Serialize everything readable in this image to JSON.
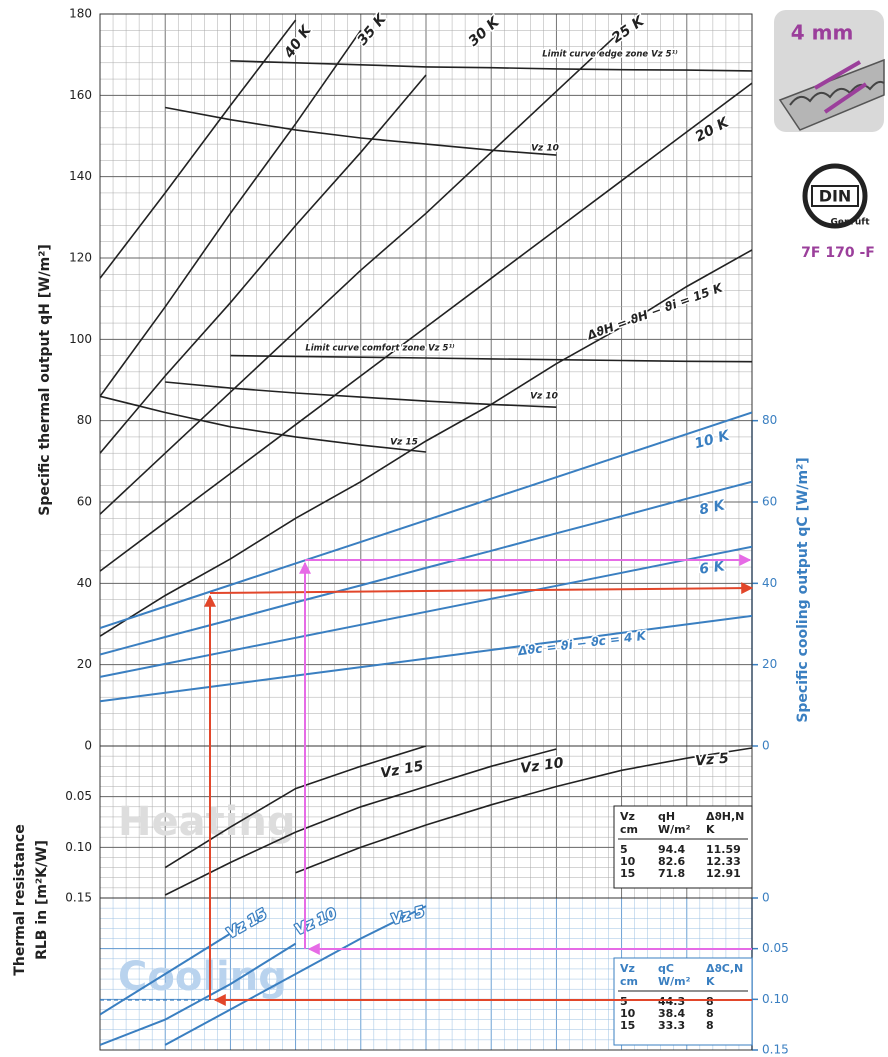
{
  "chart_data": [
    {
      "type": "line",
      "categories": [
        null,
        null,
        null,
        null,
        null,
        null,
        null,
        null,
        null,
        null,
        null
      ],
      "ylim": [
        0,
        180
      ],
      "yticks": [
        0,
        20,
        40,
        60,
        80,
        100,
        120,
        140,
        160,
        180
      ],
      "ylabel": "Specific thermal output qH [W/m²]",
      "y2lim": [
        0,
        180
      ],
      "y2ticks": [
        0,
        20,
        40,
        60,
        80
      ],
      "y2label": "Specific cooling output qC [W/m²]",
      "grid": true,
      "series": [
        {
          "name": "40 K",
          "color": "#222222",
          "values": [
            115,
            136,
            157.5,
            178.5,
            null,
            null,
            null,
            null,
            null,
            null,
            null
          ]
        },
        {
          "name": "35 K",
          "color": "#222222",
          "values": [
            86,
            108,
            131,
            153,
            176,
            null,
            null,
            null,
            null,
            null,
            null
          ]
        },
        {
          "name": "30 K",
          "color": "#222222",
          "values": [
            72,
            91,
            109,
            128,
            146,
            165,
            null,
            null,
            null,
            null,
            null
          ]
        },
        {
          "name": "25 K",
          "color": "#222222",
          "values": [
            57,
            72,
            87,
            102,
            117,
            131,
            146,
            161,
            176,
            null,
            null
          ]
        },
        {
          "name": "20 K",
          "color": "#222222",
          "values": [
            43,
            55,
            67,
            79,
            91,
            103,
            115,
            127,
            139,
            151,
            163
          ]
        },
        {
          "name": "ΔϑH = ϑH − ϑi = 15 K",
          "color": "#222222",
          "values": [
            27,
            37,
            46,
            56,
            65,
            75,
            84,
            94,
            103,
            113,
            122
          ]
        },
        {
          "name": "Limit curve edge zone Vz 5¹⁾",
          "color": "#222222",
          "values": [
            null,
            null,
            168.5,
            168,
            167.5,
            167,
            166.8,
            166.5,
            166.3,
            166.2,
            166
          ]
        },
        {
          "name": "Vz 10",
          "color": "#222222",
          "values": [
            null,
            157,
            154,
            151.5,
            149.5,
            148,
            146.5,
            145.3,
            null,
            null,
            null
          ]
        },
        {
          "name": "Limit curve comfort zone Vz 5¹⁾",
          "color": "#222222",
          "values": [
            null,
            null,
            96,
            95.8,
            95.6,
            95.4,
            95.2,
            95,
            94.8,
            94.6,
            94.5
          ]
        },
        {
          "name": "Vz 10",
          "color": "#222222",
          "values": [
            null,
            89.5,
            88,
            86.8,
            85.8,
            84.8,
            84,
            83.3,
            null,
            null,
            null
          ]
        },
        {
          "name": "Vz 15",
          "color": "#222222",
          "values": [
            86,
            82,
            78.5,
            76,
            74,
            72.3,
            null,
            null,
            null,
            null,
            null
          ]
        },
        {
          "name": "10 K",
          "color": "#3a7fc1",
          "axis": "y2",
          "values": [
            29,
            34.3,
            39.6,
            44.9,
            50.2,
            55.5,
            60.8,
            66.1,
            71.4,
            76.7,
            82
          ]
        },
        {
          "name": "8 K",
          "color": "#3a7fc1",
          "axis": "y2",
          "values": [
            22.5,
            26.8,
            31,
            35.3,
            39.5,
            43.8,
            48,
            52.3,
            56.5,
            60.8,
            65
          ]
        },
        {
          "name": "6 K",
          "color": "#3a7fc1",
          "axis": "y2",
          "values": [
            17,
            20.2,
            23.4,
            26.6,
            29.8,
            33,
            36.2,
            39.4,
            42.6,
            45.8,
            49
          ]
        },
        {
          "name": "Δϑc = ϑi − ϑc = 4 K",
          "color": "#3a7fc1",
          "axis": "y2",
          "values": [
            11,
            13.1,
            15.2,
            17.3,
            19.4,
            21.5,
            23.6,
            25.7,
            27.8,
            29.9,
            32
          ]
        }
      ]
    },
    {
      "type": "line",
      "title": "Heating",
      "categories": [
        null,
        null,
        null,
        null,
        null,
        null,
        null,
        null,
        null,
        null,
        null
      ],
      "ylim": [
        0,
        0.15
      ],
      "yreversed": true,
      "yticks": [
        0.05,
        {
          "value": 0.1,
          "label": "0.10"
        },
        0.15
      ],
      "ylabel": [
        "Thermal resistance",
        "RLB in [m²K/W]"
      ],
      "grid": true,
      "series": [
        {
          "name": "Vz 15",
          "color": "#222222",
          "values": [
            null,
            0.12,
            0.08,
            0.042,
            0.02,
            0,
            null,
            null,
            null,
            null,
            null
          ]
        },
        {
          "name": "Vz 10",
          "color": "#222222",
          "values": [
            null,
            0.147,
            0.115,
            0.085,
            0.06,
            0.04,
            0.02,
            0.003,
            null,
            null,
            null
          ]
        },
        {
          "name": "Vz 5",
          "color": "#222222",
          "values": [
            null,
            null,
            null,
            0.125,
            0.1,
            0.078,
            0.058,
            0.04,
            0.024,
            0.012,
            0.002
          ]
        }
      ],
      "table": {
        "header": [
          [
            "Vz",
            "qH",
            "ΔϑH,N"
          ],
          [
            "cm",
            "W/m²",
            "K"
          ]
        ],
        "rows": [
          [
            5,
            94.4,
            11.59
          ],
          [
            10,
            82.6,
            12.33
          ],
          [
            15,
            71.8,
            12.91
          ]
        ]
      }
    },
    {
      "type": "line",
      "title": "Cooling",
      "categories": [
        null,
        null,
        null,
        null,
        null,
        null,
        null,
        null,
        null,
        null,
        null
      ],
      "y2lim": [
        0,
        0.15
      ],
      "yreversed": true,
      "y2ticks": [
        0,
        0.05,
        {
          "value": 0.1,
          "label": "0.10"
        },
        0.15
      ],
      "grid": true,
      "series": [
        {
          "name": "Vz 15",
          "color": "#3a7fc1",
          "axis": "y2",
          "values": [
            0.115,
            0.075,
            0.035,
            null,
            null,
            null,
            null,
            null,
            null,
            null,
            null
          ]
        },
        {
          "name": "Vz 10",
          "color": "#3a7fc1",
          "axis": "y2",
          "values": [
            0.145,
            0.12,
            0.085,
            0.045,
            null,
            null,
            null,
            null,
            null,
            null,
            null
          ]
        },
        {
          "name": "Vz 5",
          "color": "#3a7fc1",
          "axis": "y2",
          "values": [
            null,
            0.145,
            0.11,
            0.075,
            0.04,
            0.008,
            null,
            null,
            null,
            null,
            null
          ]
        }
      ],
      "table": {
        "header": [
          [
            "Vz",
            "qC",
            "ΔϑC,N"
          ],
          [
            "cm",
            "W/m²",
            "K"
          ]
        ],
        "rows": [
          [
            5,
            44.3,
            8
          ],
          [
            10,
            38.4,
            8
          ],
          [
            15,
            33.3,
            8
          ]
        ]
      }
    }
  ],
  "badges": {
    "thickness": "4 mm",
    "din": "DIN",
    "din_caption": "Geprüft",
    "code": "7F 170 -F"
  }
}
